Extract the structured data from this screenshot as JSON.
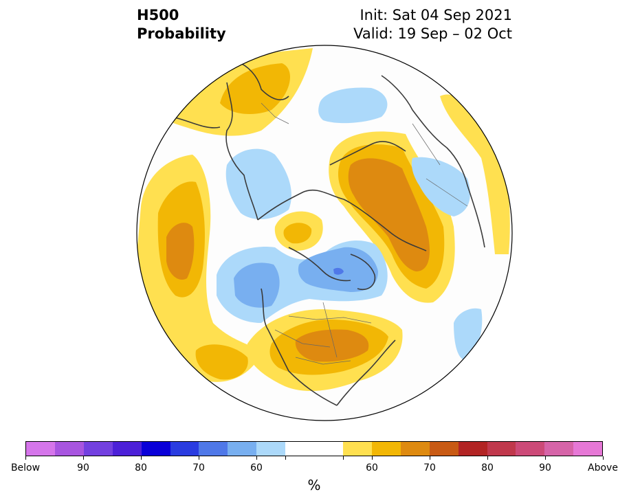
{
  "title": {
    "variable": "H500",
    "subtitle": "Probability",
    "init": "Init: Sat 04 Sep 2021",
    "valid": "Valid: 19 Sep – 02 Oct"
  },
  "colorbar": {
    "colors": [
      "#d575ea",
      "#a855e0",
      "#7340e0",
      "#4c20d8",
      "#0a00d8",
      "#2a3ce0",
      "#4f78e8",
      "#78aff0",
      "#acd9fa",
      "#ffffff",
      "#ffffff",
      "#ffe050",
      "#f2b705",
      "#de8a10",
      "#c85a14",
      "#b22424",
      "#c0384c",
      "#cc4a78",
      "#d664a8",
      "#e678d6"
    ],
    "labels": [
      "Below",
      "90",
      "80",
      "70",
      "60",
      "60",
      "70",
      "80",
      "90",
      "Above"
    ],
    "unit": "%"
  },
  "map": {
    "projection": "north-polar-stereographic",
    "anomaly_regions": [
      {
        "name": "western-europe",
        "sign": "above",
        "max_category": "60-65"
      },
      {
        "name": "russia-siberia",
        "sign": "above",
        "max_category": "65-70"
      },
      {
        "name": "central-asia",
        "sign": "below",
        "max_category": "55-60"
      },
      {
        "name": "north-pacific",
        "sign": "above",
        "max_category": "65-70"
      },
      {
        "name": "arctic-ocean",
        "sign": "above",
        "max_category": "55-60"
      },
      {
        "name": "alaska-gulf",
        "sign": "below",
        "max_category": "60-65"
      },
      {
        "name": "canadian-archipelago-greenland",
        "sign": "below",
        "max_category": "65-70"
      },
      {
        "name": "eastern-canada-great-lakes",
        "sign": "above",
        "max_category": "65-70"
      },
      {
        "name": "north-atlantic-east",
        "sign": "above",
        "max_category": "60-65"
      },
      {
        "name": "mid-atlantic",
        "sign": "below",
        "max_category": "55-60"
      }
    ]
  }
}
